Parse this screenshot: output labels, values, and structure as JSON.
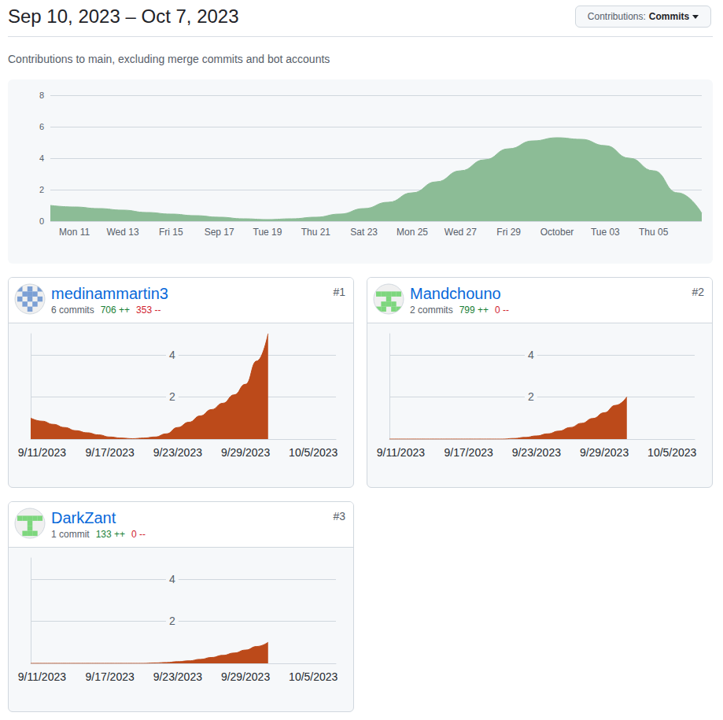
{
  "header": {
    "title": "Sep 10, 2023 – Oct 7, 2023",
    "button": {
      "label": "Contributions:",
      "value": "Commits"
    },
    "subtitle": "Contributions to main, excluding merge commits and bot accounts"
  },
  "cards": [
    {
      "rank": "#1",
      "name": "medinammartin3",
      "commits": "6 commits",
      "additions": "706 ++",
      "deletions": "353 --"
    },
    {
      "rank": "#2",
      "name": "Mandchouno",
      "commits": "2 commits",
      "additions": "799 ++",
      "deletions": "0 --"
    },
    {
      "rank": "#3",
      "name": "DarkZant",
      "commits": "1 commit",
      "additions": "133 ++",
      "deletions": "0 --"
    }
  ],
  "chart_data": [
    {
      "type": "area",
      "color": "#8cbc96",
      "categories": [
        null,
        "Mon 11",
        null,
        "Wed 13",
        null,
        "Fri 15",
        null,
        "Sep 17",
        null,
        "Tue 19",
        null,
        "Thu 21",
        null,
        "Sat 23",
        null,
        "Mon 25",
        null,
        "Wed 27",
        null,
        "Fri 29",
        null,
        "October",
        null,
        "Tue 03",
        null,
        "Thu 05",
        null,
        null
      ],
      "values": [
        1.0,
        0.9,
        0.8,
        0.7,
        0.55,
        0.45,
        0.35,
        0.25,
        0.15,
        0.1,
        0.15,
        0.25,
        0.45,
        0.8,
        1.2,
        1.8,
        2.5,
        3.2,
        3.9,
        4.6,
        5.1,
        5.3,
        5.2,
        4.8,
        4.0,
        3.2,
        1.8,
        0.5
      ],
      "ylim": [
        0,
        8
      ],
      "yticks": [
        0,
        2,
        4,
        6,
        8
      ],
      "grid": true
    },
    {
      "type": "area",
      "color": "#bc4a1a",
      "categories": [
        null,
        "9/11/2023",
        null,
        null,
        null,
        null,
        null,
        "9/17/2023",
        null,
        null,
        null,
        null,
        null,
        "9/23/2023",
        null,
        null,
        null,
        null,
        null,
        "9/29/2023",
        null,
        null,
        null,
        null,
        null,
        "10/5/2023",
        null,
        null
      ],
      "values": [
        1.0,
        0.85,
        0.7,
        0.55,
        0.4,
        0.3,
        0.2,
        0.1,
        0.05,
        0.02,
        0.05,
        0.1,
        0.25,
        0.55,
        0.8,
        1.1,
        1.4,
        1.7,
        2.1,
        2.6,
        3.7,
        5.0,
        null,
        null,
        null,
        null,
        null,
        null
      ],
      "ylim": [
        0,
        5
      ],
      "yticks": [
        2,
        4
      ],
      "grid": true
    },
    {
      "type": "area",
      "color": "#bc4a1a",
      "categories": [
        null,
        "9/11/2023",
        null,
        null,
        null,
        null,
        null,
        "9/17/2023",
        null,
        null,
        null,
        null,
        null,
        "9/23/2023",
        null,
        null,
        null,
        null,
        null,
        "9/29/2023",
        null,
        null,
        null,
        null,
        null,
        "10/5/2023",
        null,
        null
      ],
      "values": [
        0,
        0,
        0,
        0,
        0,
        0,
        0,
        0,
        0,
        0,
        0,
        0.03,
        0.08,
        0.15,
        0.25,
        0.38,
        0.55,
        0.75,
        0.98,
        1.25,
        1.6,
        2.0,
        null,
        null,
        null,
        null,
        null,
        null
      ],
      "ylim": [
        0,
        5
      ],
      "yticks": [
        2,
        4
      ],
      "grid": true
    },
    {
      "type": "area",
      "color": "#bc4a1a",
      "categories": [
        null,
        "9/11/2023",
        null,
        null,
        null,
        null,
        null,
        "9/17/2023",
        null,
        null,
        null,
        null,
        null,
        "9/23/2023",
        null,
        null,
        null,
        null,
        null,
        "9/29/2023",
        null,
        null,
        null,
        null,
        null,
        "10/5/2023",
        null,
        null
      ],
      "values": [
        0,
        0,
        0,
        0,
        0,
        0,
        0,
        0,
        0,
        0,
        0,
        0.02,
        0.04,
        0.08,
        0.12,
        0.19,
        0.28,
        0.38,
        0.49,
        0.63,
        0.8,
        1.0,
        null,
        null,
        null,
        null,
        null,
        null
      ],
      "ylim": [
        0,
        5
      ],
      "yticks": [
        2,
        4
      ],
      "grid": true
    }
  ]
}
